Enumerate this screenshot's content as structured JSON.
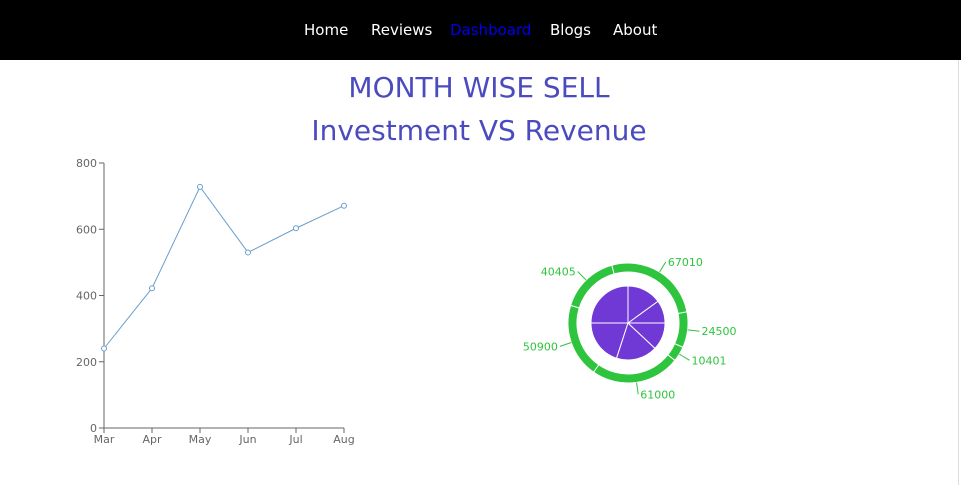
{
  "nav": {
    "items": [
      {
        "label": "Home",
        "active": false
      },
      {
        "label": "Reviews",
        "active": false
      },
      {
        "label": "Dashboard",
        "active": true
      },
      {
        "label": "Blogs",
        "active": false
      },
      {
        "label": "About",
        "active": false
      }
    ]
  },
  "headings": {
    "title": "MONTH WISE SELL",
    "subtitle": "Investment VS Revenue"
  },
  "colors": {
    "heading": "#4b4bbf",
    "line": "#6a9fcc",
    "axis": "#666666",
    "pie_inner": "#7038d4",
    "pie_outer": "#2ec43e",
    "pie_label": "#2ec43e"
  },
  "chart_data": [
    {
      "type": "line",
      "categories": [
        "Mar",
        "Apr",
        "May",
        "Jun",
        "Jul",
        "Aug"
      ],
      "values": [
        240,
        422,
        728,
        530,
        603,
        671
      ],
      "ylim": [
        0,
        800
      ],
      "yticks": [
        0,
        200,
        400,
        600,
        800
      ],
      "xlabel": "",
      "ylabel": "",
      "grid": false
    },
    {
      "type": "pie",
      "inner_values": [
        10,
        15,
        25,
        20,
        18,
        12
      ],
      "outer_values": [
        24500,
        10401,
        61000,
        50900,
        40405,
        67010
      ],
      "outer_labels": [
        "24500",
        "10401",
        "61000",
        "50900",
        "40405",
        "67010"
      ],
      "legend": "none"
    }
  ]
}
